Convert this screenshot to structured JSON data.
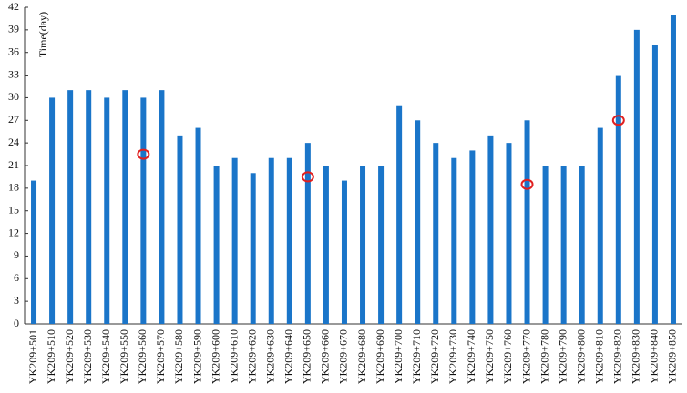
{
  "chart_data": {
    "type": "bar",
    "y_label": "Time(day)",
    "categories": [
      "YK209+501",
      "YK209+510",
      "YK209+520",
      "YK209+530",
      "YK209+540",
      "YK209+550",
      "YK209+560",
      "YK209+570",
      "YK209+580",
      "YK209+590",
      "YK209+600",
      "YK209+610",
      "YK209+620",
      "YK209+630",
      "YK209+640",
      "YK209+650",
      "YK209+660",
      "YK209+670",
      "YK209+680",
      "YK209+690",
      "YK209+700",
      "YK209+710",
      "YK209+720",
      "YK209+730",
      "YK209+740",
      "YK209+750",
      "YK209+760",
      "YK209+770",
      "YK209+780",
      "YK209+790",
      "YK209+800",
      "YK209+810",
      "YK209+820",
      "YK209+830",
      "YK209+840",
      "YK209+850"
    ],
    "values": [
      19,
      30,
      31,
      31,
      30,
      31,
      30,
      31,
      25,
      26,
      21,
      22,
      20,
      22,
      22,
      24,
      21,
      19,
      21,
      21,
      29,
      27,
      24,
      22,
      23,
      25,
      24,
      27,
      21,
      21,
      21,
      26,
      33,
      39,
      37,
      41
    ],
    "color": "#1a75c9",
    "markers": {
      "categories": [
        "YK209+560",
        "YK209+650",
        "YK209+770",
        "YK209+820"
      ],
      "values": [
        22.5,
        19.5,
        18.5,
        27
      ],
      "color": "#e02020"
    },
    "ylim": [
      0,
      42
    ],
    "yticks": [
      0,
      3,
      6,
      9,
      12,
      15,
      18,
      21,
      24,
      27,
      30,
      33,
      36,
      39,
      42
    ],
    "grid": false
  }
}
